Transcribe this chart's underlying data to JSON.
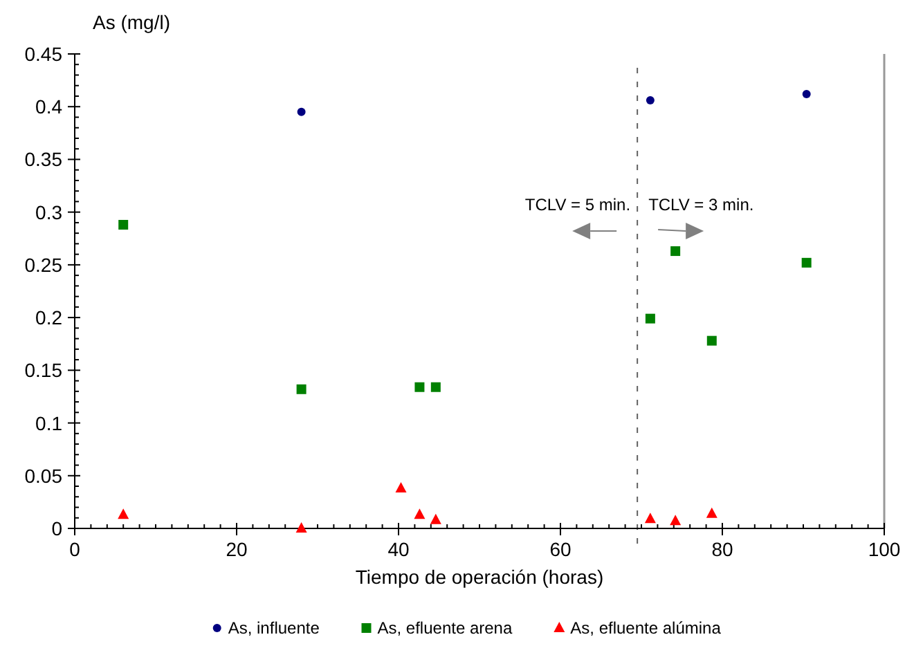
{
  "chart_data": {
    "type": "scatter",
    "xlabel": "Tiempo de operación (horas)",
    "ylabel": "As (mg/l)",
    "xlim": [
      0,
      100
    ],
    "xticks": [
      0,
      20,
      40,
      60,
      80,
      100
    ],
    "ylim": [
      0,
      0.45
    ],
    "yticks": [
      0,
      0.05,
      0.1,
      0.15,
      0.2,
      0.25,
      0.3,
      0.35,
      0.4,
      0.45
    ],
    "grid": false,
    "legend": "bottom",
    "series": [
      {
        "name": "As, influente",
        "color": "#000080",
        "marker": "circle",
        "x": [
          28,
          71.1,
          90.4
        ],
        "values": [
          0.395,
          0.406,
          0.412
        ]
      },
      {
        "name": "As, efluente arena",
        "color": "#008000",
        "marker": "square",
        "x": [
          6,
          28,
          42.6,
          44.6,
          71.1,
          74.2,
          78.7,
          90.4
        ],
        "values": [
          0.288,
          0.132,
          0.134,
          0.134,
          0.199,
          0.263,
          0.178,
          0.252
        ]
      },
      {
        "name": "As, efluente alúmina",
        "color": "#ff0000",
        "marker": "triangle",
        "x": [
          6,
          28,
          40.3,
          42.6,
          44.6,
          71.1,
          74.2,
          78.7
        ],
        "values": [
          0.013,
          0,
          0.038,
          0.013,
          0.008,
          0.009,
          0.007,
          0.014
        ]
      }
    ],
    "ref_lines": [
      {
        "axis": "x",
        "value": 69.5,
        "line_style": "dashed",
        "color": "#606060"
      }
    ],
    "annotations": [
      "TCLV = 5 min.",
      "TCLV = 3 min."
    ]
  }
}
